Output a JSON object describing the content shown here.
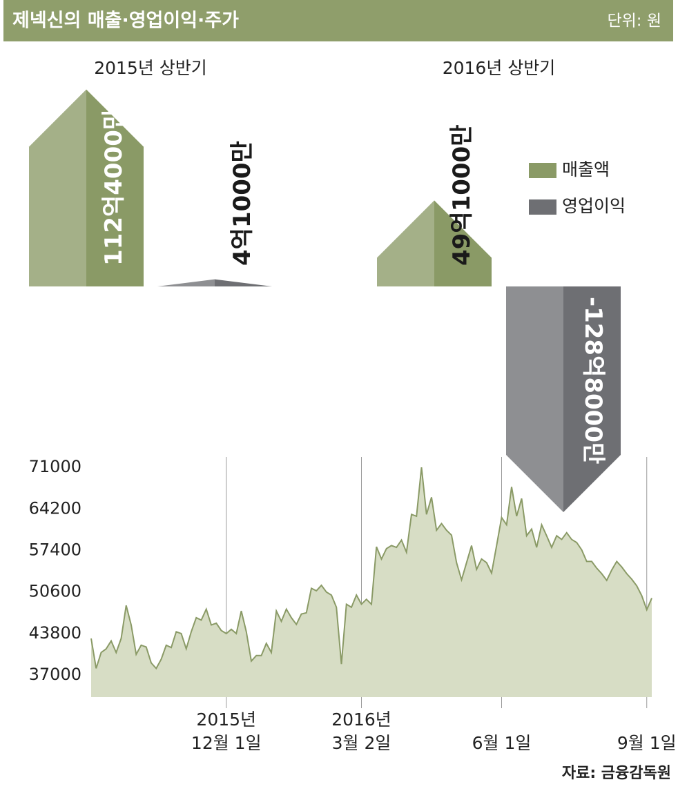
{
  "title": "제넥신의 매출·영업이익·주가",
  "unit": "단위: 원",
  "source": "자료: 금융감독원",
  "chart_data": [
    {
      "type": "bar",
      "categories": [
        "2015년 상반기",
        "2016년 상반기"
      ],
      "series": [
        {
          "name": "매출액",
          "color": "#8a9a66",
          "values": [
            11240000000,
            4910000000
          ],
          "value_labels": [
            "112억4000만",
            "49억1000만"
          ]
        },
        {
          "name": "영업이익",
          "color": "#6e6f73",
          "values": [
            410000000,
            -12880000000
          ],
          "value_labels": [
            "4억1000만",
            "-128억8000만"
          ]
        }
      ]
    },
    {
      "type": "area",
      "color": "#8a9a66",
      "area_color": "#d7ddc5",
      "ylim": [
        33400,
        72700
      ],
      "yticks": [
        37000,
        43800,
        50600,
        57400,
        64200,
        71000
      ],
      "categories": [
        null,
        null,
        null,
        null,
        null,
        null,
        null,
        null,
        null,
        null,
        null,
        null,
        null,
        null,
        null,
        null,
        null,
        null,
        null,
        null,
        null,
        null,
        null,
        null,
        null,
        null,
        null,
        "2015년\n12월 1일",
        null,
        null,
        null,
        null,
        null,
        null,
        null,
        null,
        null,
        null,
        null,
        null,
        null,
        null,
        null,
        null,
        null,
        null,
        null,
        null,
        null,
        null,
        null,
        null,
        null,
        null,
        "2016년\n3월 2일",
        null,
        null,
        null,
        null,
        null,
        null,
        null,
        null,
        null,
        null,
        null,
        null,
        null,
        null,
        null,
        null,
        null,
        null,
        null,
        null,
        null,
        null,
        null,
        null,
        null,
        null,
        null,
        "6월 1일",
        null,
        null,
        null,
        null,
        null,
        null,
        null,
        null,
        null,
        null,
        null,
        null,
        null,
        null,
        null,
        null,
        null,
        null,
        null,
        null,
        null,
        null,
        null,
        null,
        null,
        null,
        null,
        null,
        "9월 1일",
        null
      ],
      "values": [
        43000,
        38100,
        40700,
        41300,
        42600,
        40700,
        43000,
        48400,
        45200,
        40400,
        41900,
        41600,
        39000,
        38100,
        39600,
        41900,
        41500,
        44100,
        43800,
        41300,
        44100,
        46400,
        46000,
        47800,
        45200,
        45500,
        44300,
        43800,
        44500,
        43800,
        47500,
        44100,
        39300,
        40200,
        40200,
        42200,
        40700,
        47500,
        45800,
        47800,
        46400,
        45300,
        47000,
        47200,
        51200,
        50800,
        51700,
        50600,
        50100,
        48100,
        38800,
        48600,
        48100,
        50100,
        48600,
        49400,
        48600,
        58000,
        56000,
        57700,
        58200,
        57900,
        59100,
        57100,
        63300,
        63000,
        71000,
        63300,
        66100,
        60700,
        61800,
        60700,
        59900,
        55400,
        52600,
        55400,
        58200,
        54300,
        56000,
        55400,
        53700,
        58200,
        62800,
        61600,
        67800,
        63000,
        65900,
        59800,
        60900,
        57900,
        61600,
        59800,
        57900,
        59800,
        59200,
        60300,
        59200,
        58700,
        57500,
        55600,
        55600,
        54500,
        53600,
        52500,
        54200,
        55600,
        54700,
        53600,
        52700,
        51600,
        50000,
        47700,
        49600
      ]
    }
  ]
}
